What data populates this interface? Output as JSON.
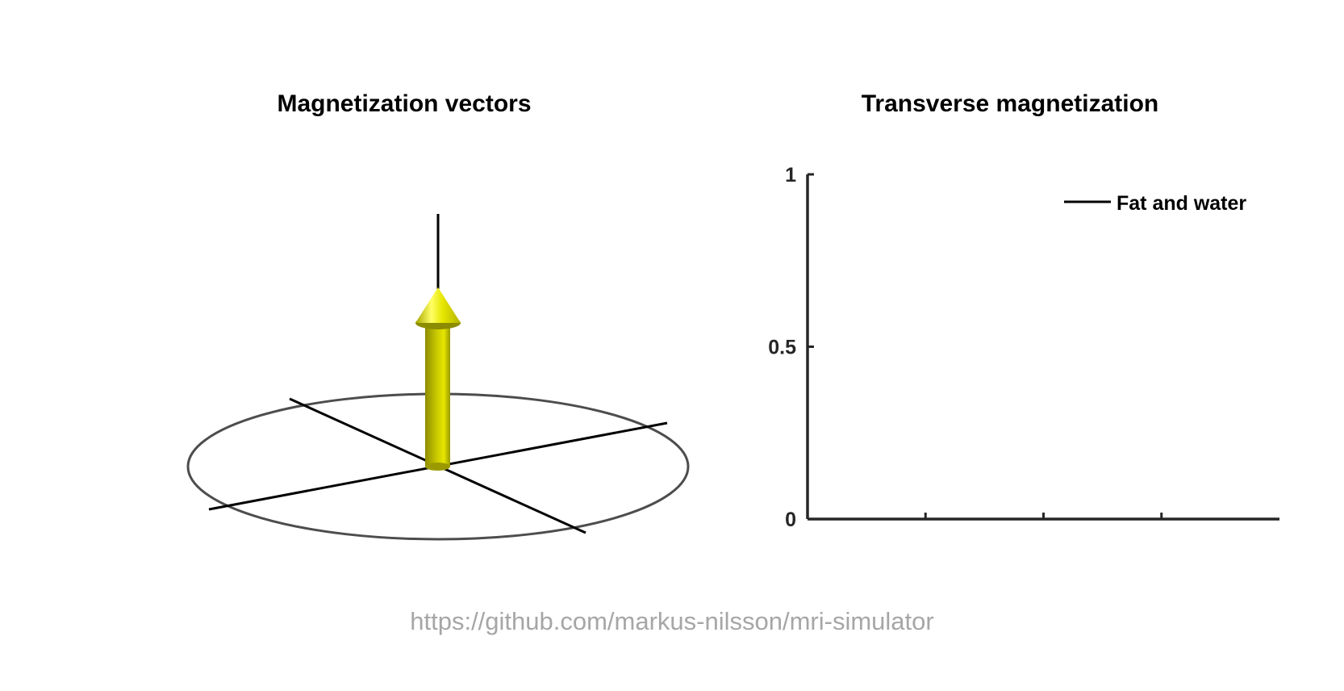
{
  "footer": {
    "url": "https://github.com/markus-nilsson/mri-simulator"
  },
  "colors": {
    "vector": "#e6e600",
    "vector_shade": "#8c8c00",
    "ellipse": "#4d4d4d",
    "axes": "#000000",
    "footer_text": "#a6a6a6"
  },
  "chart_data": [
    {
      "type": "3d-vector",
      "title": "Magnetization vectors",
      "vectors": [
        {
          "color": "yellow",
          "mx": 0,
          "my": 0,
          "mz": 1
        }
      ]
    },
    {
      "type": "line",
      "title": "Transverse magnetization",
      "xlabel": "",
      "ylabel": "",
      "ylim": [
        0,
        1
      ],
      "yticks": [
        0,
        0.5,
        1
      ],
      "ytick_labels": [
        "0",
        "0.5",
        "1"
      ],
      "xtick_count": 3,
      "xtick_labels": [],
      "grid": false,
      "legend_position": "top-right",
      "series": [
        {
          "name": "Fat and water",
          "color": "#000000",
          "x": [],
          "y": []
        }
      ]
    }
  ]
}
